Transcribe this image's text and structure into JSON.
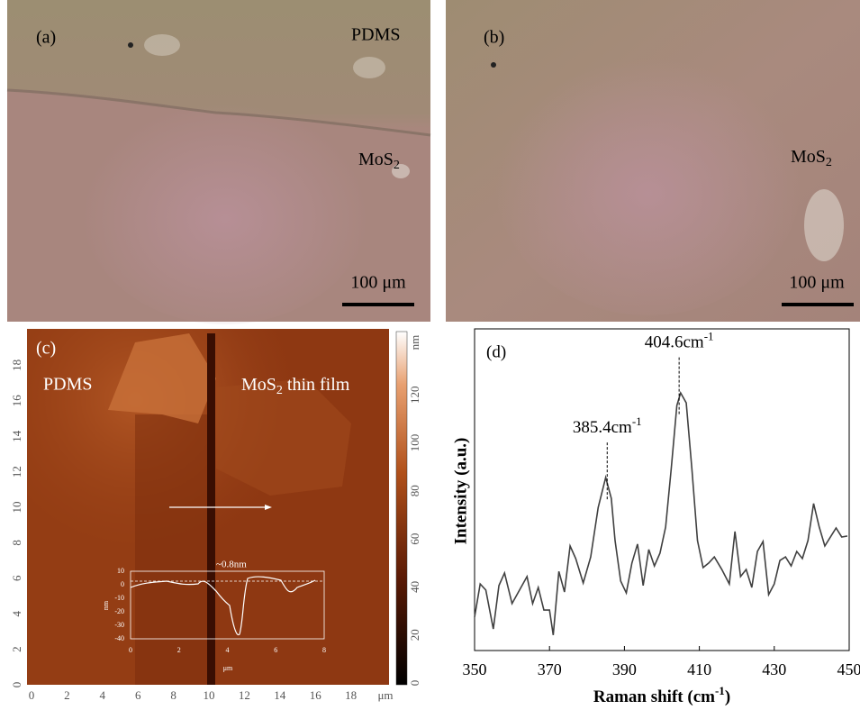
{
  "panels": {
    "a": {
      "label": "(a)",
      "top_label": "PDMS",
      "film_label": {
        "text": "MoS",
        "sub": "2"
      },
      "scale_bar": "100 μm"
    },
    "b": {
      "label": "(b)",
      "film_label": {
        "text": "MoS",
        "sub": "2"
      },
      "scale_bar": "100 μm"
    },
    "c": {
      "label": "(c)",
      "left_label": "PDMS",
      "right_label": {
        "text": "MoS",
        "sub": "2",
        "rest": " thin film"
      },
      "xticks": [
        0,
        2,
        4,
        6,
        8,
        10,
        12,
        14,
        16,
        18
      ],
      "x_unit": "μm",
      "yticks": [
        0,
        2,
        4,
        6,
        8,
        10,
        12,
        14,
        16,
        18
      ],
      "colorbar_ticks": [
        0,
        20,
        40,
        60,
        80,
        100,
        120
      ],
      "colorbar_unit": "nm",
      "inset": {
        "annotation": "~0.8nm",
        "yticks": [
          10,
          0,
          -10,
          -20,
          -30,
          -40
        ],
        "xticks": [
          0,
          2,
          4,
          6,
          8
        ],
        "ylabel": "nm",
        "xlabel": "μm"
      }
    }
  },
  "chart_data": {
    "type": "line",
    "panel_label": "(d)",
    "xlabel": {
      "text": "Raman shift (cm",
      "sup": "-1",
      "rest": ")"
    },
    "ylabel": "Intensity (a.u.)",
    "color": "#404040",
    "xlim": [
      350,
      450
    ],
    "xticks": [
      350,
      370,
      390,
      410,
      430,
      450
    ],
    "ylim": [
      0,
      100
    ],
    "x": [
      350,
      351.5,
      353,
      355,
      356.5,
      358,
      360,
      362,
      364,
      365.5,
      367,
      368.5,
      370,
      371,
      372.5,
      374,
      375.5,
      377,
      379,
      381,
      383,
      385,
      386.5,
      387.5,
      389,
      390.5,
      392,
      393.5,
      395,
      396.5,
      398,
      399.5,
      401,
      402.5,
      404,
      405,
      406.5,
      408,
      409.5,
      411,
      412.5,
      414,
      416,
      418,
      419.5,
      421,
      422.5,
      424,
      425.5,
      427,
      428.5,
      430,
      431.5,
      433,
      434.5,
      436,
      437.5,
      439,
      440.5,
      442,
      443.5,
      445,
      446.5,
      448,
      449.5
    ],
    "values": [
      10.4,
      20.7,
      18.8,
      6.7,
      20.2,
      24.1,
      14.6,
      18.8,
      23.0,
      14.6,
      19.6,
      12.6,
      12.6,
      4.8,
      24.6,
      18.2,
      32.5,
      28.6,
      21.0,
      29.1,
      44.5,
      53.8,
      47.3,
      34.2,
      21.6,
      17.9,
      27.2,
      33.1,
      20.2,
      31.4,
      26.3,
      30.3,
      38.4,
      56.6,
      76.2,
      80.1,
      77.0,
      56.6,
      34.2,
      25.8,
      27.2,
      29.1,
      25.2,
      20.7,
      37.0,
      23.0,
      25.2,
      19.6,
      30.8,
      33.9,
      17.4,
      20.7,
      28.0,
      29.1,
      26.3,
      30.8,
      28.6,
      34.2,
      45.7,
      38.4,
      32.5,
      35.3,
      38.1,
      35.3,
      35.6
    ],
    "annotations": [
      {
        "x": 385.4,
        "text": "385.4cm",
        "sup": "-1"
      },
      {
        "x": 404.6,
        "text": "404.6cm",
        "sup": "-1"
      }
    ]
  }
}
